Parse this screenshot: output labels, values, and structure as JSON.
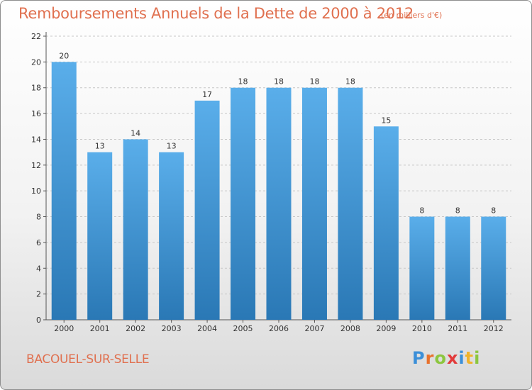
{
  "chart_data": {
    "type": "bar",
    "title": "Remboursements Annuels de la Dette de 2000 à 2012",
    "subtitle": "(en milliers d'€)",
    "categories": [
      "2000",
      "2001",
      "2002",
      "2003",
      "2004",
      "2005",
      "2006",
      "2007",
      "2008",
      "2009",
      "2010",
      "2011",
      "2012"
    ],
    "values": [
      20,
      13,
      14,
      13,
      17,
      18,
      18,
      18,
      18,
      15,
      8,
      8,
      8
    ],
    "ylim": [
      0,
      22
    ],
    "yticks": [
      0,
      2,
      4,
      6,
      8,
      10,
      12,
      14,
      16,
      18,
      20,
      22
    ],
    "xlabel": "",
    "ylabel": "",
    "grid": true
  },
  "footer": {
    "town": "BACOUEL-SUR-SELLE",
    "logo_letters": [
      "P",
      "r",
      "o",
      "x",
      "i",
      "t",
      "i"
    ],
    "logo_colors": [
      "#3b8fd8",
      "#e8712c",
      "#8cc63f",
      "#e23b3b",
      "#3b8fd8",
      "#f0b32a",
      "#8cc63f"
    ]
  },
  "colors": {
    "bar_top": "#5aaeea",
    "bar_bottom": "#2a78b5",
    "title": "#e0704f",
    "grid": "#c8c8c8"
  }
}
